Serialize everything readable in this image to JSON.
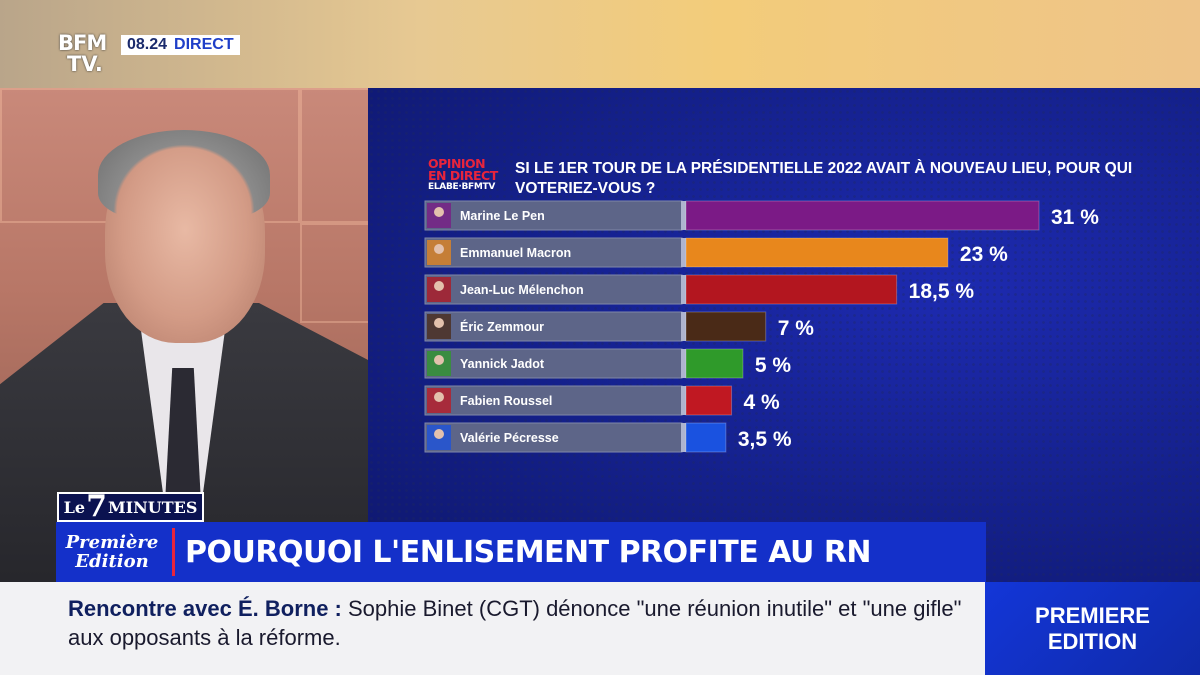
{
  "channel": {
    "logo_top": "BFM",
    "logo_bottom": "TV.",
    "time": "08.24",
    "live_label": "DIRECT"
  },
  "poll": {
    "badge_line1": "OPINION",
    "badge_line2": "EN DIRECT",
    "badge_line3": "ELABE·BFMTV",
    "question": "SI LE 1ER TOUR DE LA PRÉSIDENTIELLE 2022 AVAIT À NOUVEAU LIEU, POUR QUI VOTERIEZ-VOUS ?"
  },
  "chart_data": {
    "type": "bar",
    "orientation": "horizontal",
    "title": "SI LE 1ER TOUR DE LA PRÉSIDENTIELLE 2022 AVAIT À NOUVEAU LIEU, POUR QUI VOTERIEZ-VOUS ?",
    "unit": "%",
    "xlim": [
      0,
      31
    ],
    "categories": [
      "Marine Le Pen",
      "Emmanuel Macron",
      "Jean-Luc Mélenchon",
      "Éric Zemmour",
      "Yannick Jadot",
      "Fabien Roussel",
      "Valérie Pécresse"
    ],
    "values": [
      31,
      23,
      18.5,
      7,
      5,
      4,
      3.5
    ],
    "value_labels": [
      "31 %",
      "23 %",
      "18,5 %",
      "7 %",
      "5 %",
      "4 %",
      "3,5 %"
    ],
    "colors": [
      "#7b1a86",
      "#e8871c",
      "#b3161f",
      "#4a2a17",
      "#2f9a2a",
      "#c01822",
      "#1a52e0"
    ]
  },
  "program": {
    "show_name_a": "Le",
    "show_name_b": "7",
    "show_name_c": "MINUTES",
    "edition_line1": "Première",
    "edition_line2": "Edition"
  },
  "headline": "POURQUOI L'ENLISEMENT PROFITE AU RN",
  "ticker": {
    "lead": "Rencontre avec É. Borne :",
    "body": "Sophie Binet (CGT) dénonce \"une réunion inutile\" et \"une gifle\" aux opposants à la réforme."
  },
  "corner_badge": {
    "line1": "PREMIERE",
    "line2": "EDITION"
  }
}
